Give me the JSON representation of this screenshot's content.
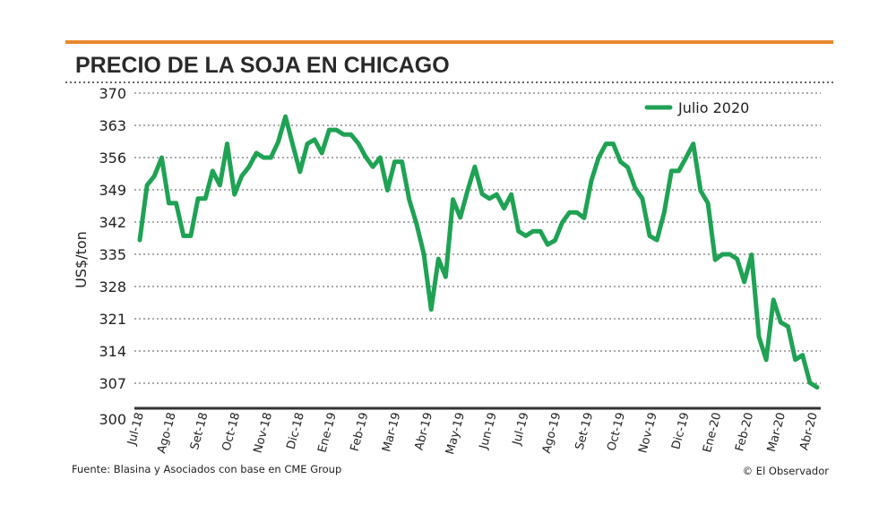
{
  "colors": {
    "accent_bar": "#e8872e",
    "series": "#1fa254",
    "grid": "#555555",
    "axis": "#333333"
  },
  "chart_data": {
    "type": "line",
    "title": "PRECIO DE LA SOJA EN CHICAGO",
    "ylabel": "US$/ton",
    "xlabel": "",
    "ylim": [
      300,
      370
    ],
    "yticks": [
      370,
      363,
      356,
      349,
      342,
      335,
      328,
      321,
      314,
      307,
      300
    ],
    "xtick_labels": [
      "Jul-18",
      "Ago-18",
      "Set-18",
      "Oct-18",
      "Nov-18",
      "Dic-18",
      "Ene-19",
      "Feb-19",
      "Mar-19",
      "Abr-19",
      "May-19",
      "Jun-19",
      "Jul-19",
      "Ago-19",
      "Set-19",
      "Oct-19",
      "Nov-19",
      "Dic-19",
      "Ene-20",
      "Feb-20",
      "Mar-20",
      "Abr-20"
    ],
    "grid": true,
    "legend_position": "top-right",
    "series": [
      {
        "name": "Julio 2020",
        "values": [
          338.1,
          350.0,
          352.0,
          356.0,
          346.1,
          346.1,
          339.0,
          339.0,
          347.1,
          347.1,
          353.1,
          350.0,
          359.0,
          348.0,
          352.0,
          354.0,
          357.0,
          356.0,
          356.0,
          359.4,
          364.9,
          358.8,
          352.9,
          359.0,
          359.9,
          357.0,
          362.0,
          362.0,
          361.0,
          361.0,
          359.1,
          356.2,
          354.0,
          356.0,
          348.9,
          355.1,
          355.1,
          346.8,
          341.6,
          335.1,
          323.0,
          334.0,
          330.1,
          346.9,
          343.0,
          348.8,
          354.0,
          348.1,
          347.1,
          348.0,
          345.0,
          348.0,
          340.0,
          339.0,
          340.0,
          340.0,
          337.1,
          338.0,
          341.9,
          344.1,
          344.1,
          342.9,
          351.0,
          356.0,
          359.0,
          359.0,
          355.1,
          353.9,
          349.4,
          347.1,
          339.0,
          338.1,
          344.1,
          353.1,
          353.1,
          356.0,
          359.0,
          348.8,
          346.1,
          333.8,
          335.0,
          335.0,
          334.0,
          329.0,
          334.9,
          317.1,
          312.1,
          325.1,
          320.2,
          319.3,
          312.1,
          313.1,
          307.1,
          306.1
        ]
      }
    ]
  },
  "footer": {
    "source": "Fuente: Blasina y Asociados con base en CME Group",
    "credit": "© El Observador"
  }
}
